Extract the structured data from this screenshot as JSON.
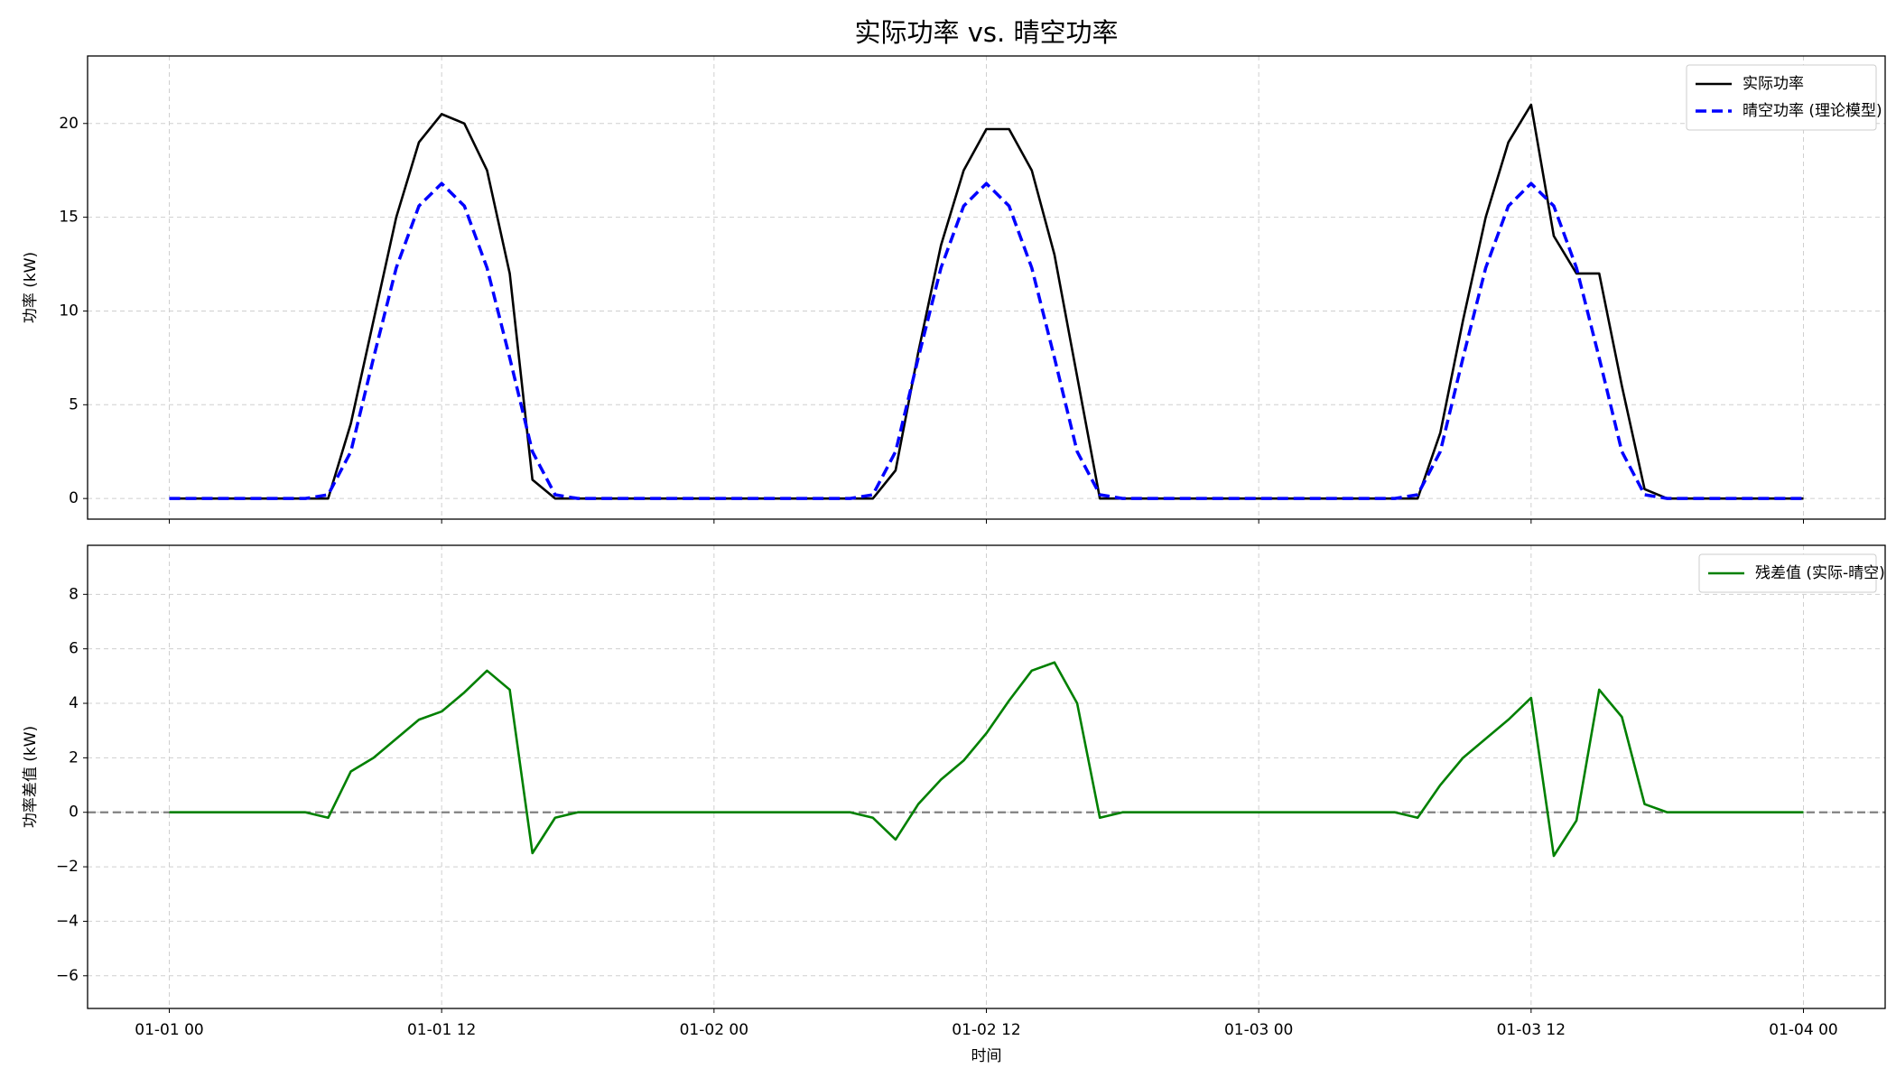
{
  "chart_data": [
    {
      "type": "line",
      "title": "实际功率 vs. 晴空功率",
      "ylabel": "功率 (kW)",
      "x": [
        0,
        1,
        2,
        3,
        4,
        5,
        6,
        7,
        8,
        9,
        10,
        11,
        12,
        13,
        14,
        15,
        16,
        17,
        18,
        19,
        20,
        21,
        22,
        23,
        24,
        25,
        26,
        27,
        28,
        29,
        30,
        31,
        32,
        33,
        34,
        35,
        36,
        37,
        38,
        39,
        40,
        41,
        42,
        43,
        44,
        45,
        46,
        47,
        48,
        49,
        50,
        51,
        52,
        53,
        54,
        55,
        56,
        57,
        58,
        59,
        60,
        61,
        62,
        63,
        64,
        65,
        66,
        67,
        68,
        69,
        70,
        71,
        72
      ],
      "series": [
        {
          "name": "实际功率",
          "color": "#000000",
          "dash": false,
          "values": [
            0,
            0,
            0,
            0,
            0,
            0,
            0,
            0,
            4,
            9.5,
            15,
            19,
            20.5,
            20,
            17.5,
            12,
            1,
            0,
            0,
            0,
            0,
            0,
            0,
            0,
            0,
            0,
            0,
            0,
            0,
            0,
            0,
            0,
            1.5,
            7.8,
            13.5,
            17.5,
            19.7,
            19.7,
            17.5,
            13,
            6.5,
            0,
            0,
            0,
            0,
            0,
            0,
            0,
            0,
            0,
            0,
            0,
            0,
            0,
            0,
            0,
            3.5,
            9.5,
            15,
            19,
            21,
            14,
            12,
            12,
            6,
            0.5,
            0,
            0,
            0,
            0,
            0,
            0,
            0
          ]
        },
        {
          "name": "晴空功率 (理论模型)",
          "color": "#0000ff",
          "dash": true,
          "values": [
            0,
            0,
            0,
            0,
            0,
            0,
            0,
            0.2,
            2.5,
            7.5,
            12.3,
            15.6,
            16.8,
            15.6,
            12.3,
            7.5,
            2.5,
            0.2,
            0,
            0,
            0,
            0,
            0,
            0,
            0,
            0,
            0,
            0,
            0,
            0,
            0,
            0.2,
            2.5,
            7.5,
            12.3,
            15.6,
            16.8,
            15.6,
            12.3,
            7.5,
            2.5,
            0.2,
            0,
            0,
            0,
            0,
            0,
            0,
            0,
            0,
            0,
            0,
            0,
            0,
            0,
            0.2,
            2.5,
            7.5,
            12.3,
            15.6,
            16.8,
            15.6,
            12.3,
            7.5,
            2.5,
            0.2,
            0,
            0,
            0,
            0,
            0,
            0,
            0
          ]
        }
      ],
      "xlim": [
        -3.6,
        75.6
      ],
      "ylim": [
        -1.1,
        23.6
      ],
      "yticks": [
        0,
        5,
        10,
        15,
        20
      ],
      "xticks": [
        {
          "value": 0,
          "label": "01-01 00"
        },
        {
          "value": 12,
          "label": "01-01 12"
        },
        {
          "value": 24,
          "label": "01-02 00"
        },
        {
          "value": 36,
          "label": "01-02 12"
        },
        {
          "value": 48,
          "label": "01-03 00"
        },
        {
          "value": 60,
          "label": "01-03 12"
        },
        {
          "value": 72,
          "label": "01-04 00"
        }
      ],
      "grid": true,
      "legend": "upper-right"
    },
    {
      "type": "line",
      "xlabel": "时间",
      "ylabel": "功率差值 (kW)",
      "x": [
        0,
        1,
        2,
        3,
        4,
        5,
        6,
        7,
        8,
        9,
        10,
        11,
        12,
        13,
        14,
        15,
        16,
        17,
        18,
        19,
        20,
        21,
        22,
        23,
        24,
        25,
        26,
        27,
        28,
        29,
        30,
        31,
        32,
        33,
        34,
        35,
        36,
        37,
        38,
        39,
        40,
        41,
        42,
        43,
        44,
        45,
        46,
        47,
        48,
        49,
        50,
        51,
        52,
        53,
        54,
        55,
        56,
        57,
        58,
        59,
        60,
        61,
        62,
        63,
        64,
        65,
        66,
        67,
        68,
        69,
        70,
        71,
        72
      ],
      "series": [
        {
          "name": "残差值 (实际-晴空)",
          "color": "#008000",
          "dash": false,
          "values": [
            0,
            0,
            0,
            0,
            0,
            0,
            0,
            -0.2,
            1.5,
            2,
            2.7,
            3.4,
            3.7,
            4.4,
            5.2,
            4.5,
            -1.5,
            -0.2,
            0,
            0,
            0,
            0,
            0,
            0,
            0,
            0,
            0,
            0,
            0,
            0,
            0,
            -0.2,
            -1,
            0.3,
            1.2,
            1.9,
            2.9,
            4.1,
            5.2,
            5.5,
            4,
            -0.2,
            0,
            0,
            0,
            0,
            0,
            0,
            0,
            0,
            0,
            0,
            0,
            0,
            0,
            -0.2,
            1,
            2,
            2.7,
            3.4,
            4.2,
            -1.6,
            -0.3,
            4.5,
            3.5,
            0.3,
            0,
            0,
            0,
            0,
            0,
            0,
            0
          ]
        }
      ],
      "hlines": [
        0
      ],
      "hline_color": "#808080",
      "xlim": [
        -3.6,
        75.6
      ],
      "ylim": [
        -7.2,
        9.8
      ],
      "yticks": [
        -6,
        -4,
        -2,
        0,
        2,
        4,
        6,
        8
      ],
      "xticks": [
        {
          "value": 0,
          "label": "01-01 00"
        },
        {
          "value": 12,
          "label": "01-01 12"
        },
        {
          "value": 24,
          "label": "01-02 00"
        },
        {
          "value": 36,
          "label": "01-02 12"
        },
        {
          "value": 48,
          "label": "01-03 00"
        },
        {
          "value": 60,
          "label": "01-03 12"
        },
        {
          "value": 72,
          "label": "01-04 00"
        }
      ],
      "grid": true,
      "legend": "upper-right"
    }
  ]
}
